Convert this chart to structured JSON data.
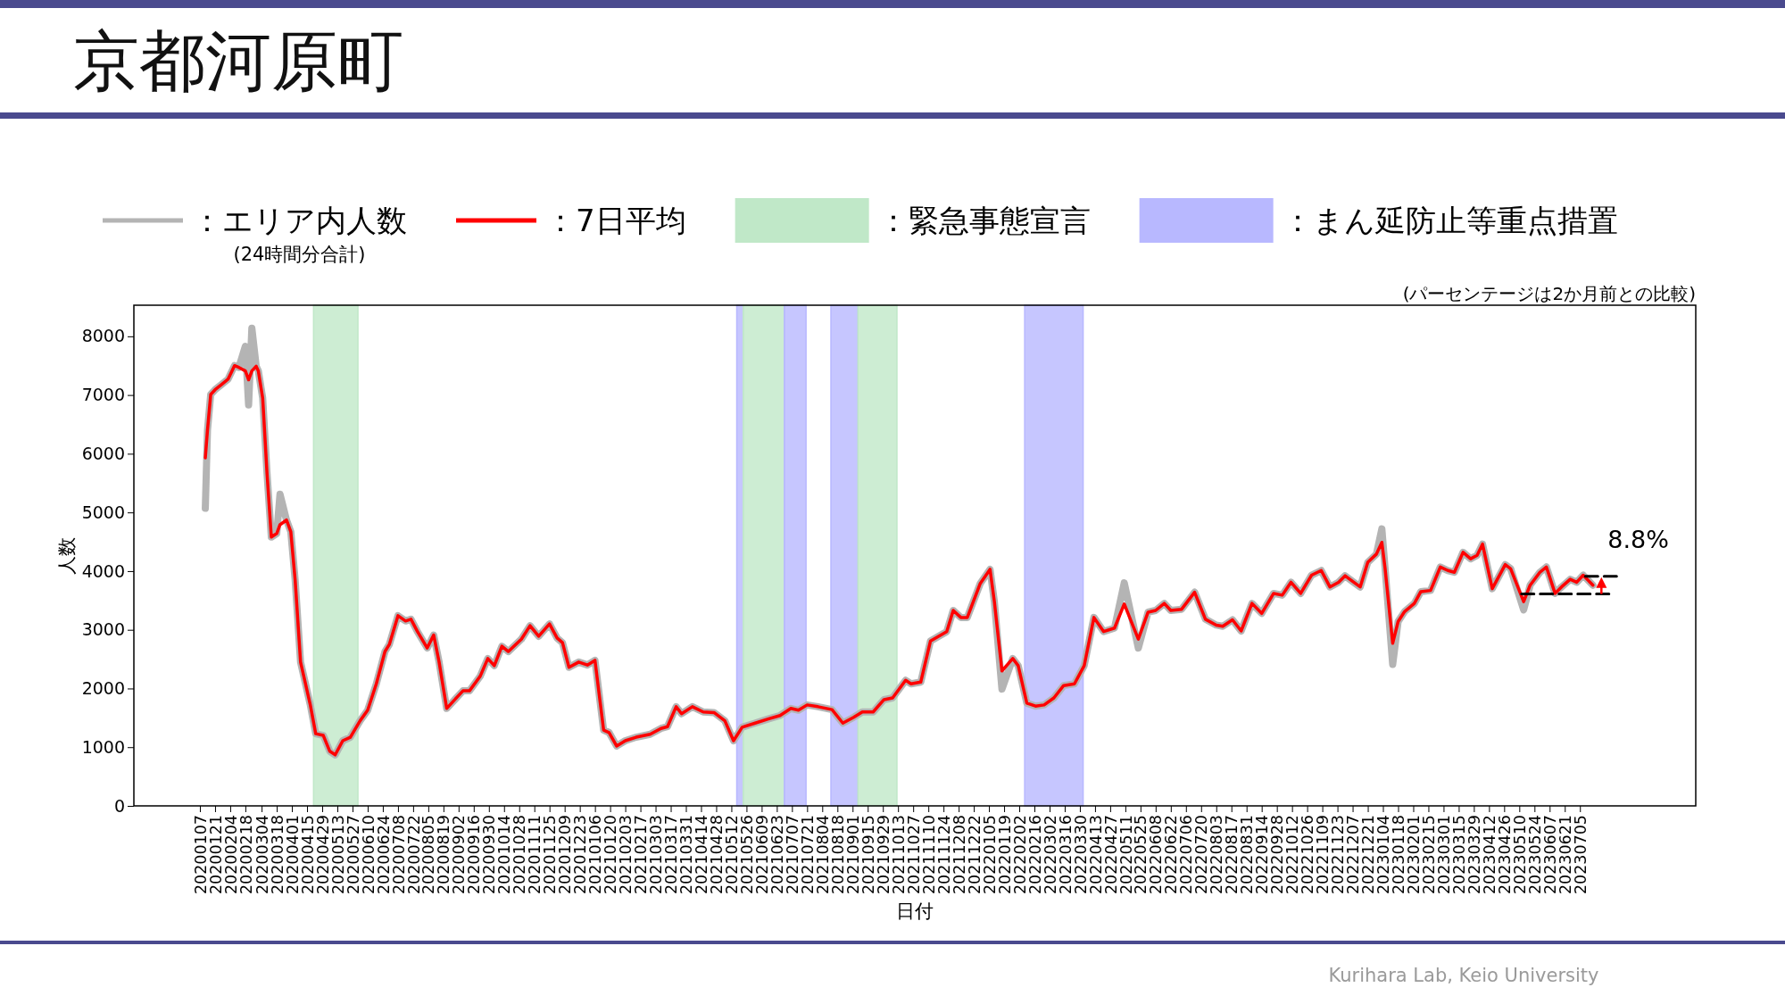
{
  "chart_data": {
    "type": "line",
    "title": "京都河原町",
    "xlabel": "日付",
    "ylabel": "人数",
    "x": [
      "2020-01-12",
      "2020-01-14",
      "2020-01-17",
      "2020-01-21",
      "2020-01-27",
      "2020-02-02",
      "2020-02-08",
      "2020-02-12",
      "2020-02-18",
      "2020-02-21",
      "2020-02-24",
      "2020-02-28",
      "2020-03-01",
      "2020-03-05",
      "2020-03-09",
      "2020-03-13",
      "2020-03-18",
      "2020-03-21",
      "2020-03-27",
      "2020-03-31",
      "2020-04-04",
      "2020-04-09",
      "2020-04-18",
      "2020-04-23",
      "2020-04-30",
      "2020-05-06",
      "2020-05-11",
      "2020-05-18",
      "2020-05-25",
      "2020-06-03",
      "2020-06-10",
      "2020-06-18",
      "2020-06-26",
      "2020-06-30",
      "2020-07-08",
      "2020-07-15",
      "2020-07-20",
      "2020-07-26",
      "2020-08-04",
      "2020-08-10",
      "2020-08-15",
      "2020-08-22",
      "2020-08-28",
      "2020-09-06",
      "2020-09-12",
      "2020-09-22",
      "2020-09-29",
      "2020-10-05",
      "2020-10-12",
      "2020-10-18",
      "2020-10-30",
      "2020-11-07",
      "2020-11-15",
      "2020-11-25",
      "2020-12-02",
      "2020-12-07",
      "2020-12-13",
      "2020-12-22",
      "2020-12-30",
      "2021-01-06",
      "2021-01-14",
      "2021-01-19",
      "2021-01-26",
      "2021-02-03",
      "2021-02-13",
      "2021-02-26",
      "2021-03-08",
      "2021-03-14",
      "2021-03-22",
      "2021-03-27",
      "2021-04-06",
      "2021-04-16",
      "2021-04-26",
      "2021-05-06",
      "2021-05-14",
      "2021-05-22",
      "2021-06-03",
      "2021-06-15",
      "2021-06-26",
      "2021-07-06",
      "2021-07-13",
      "2021-07-21",
      "2021-07-31",
      "2021-08-13",
      "2021-08-23",
      "2021-09-02",
      "2021-09-10",
      "2021-09-20",
      "2021-09-30",
      "2021-10-08",
      "2021-10-20",
      "2021-10-25",
      "2021-11-03",
      "2021-11-12",
      "2021-11-27",
      "2021-12-03",
      "2021-12-10",
      "2021-12-16",
      "2021-12-28",
      "2022-01-06",
      "2022-01-10",
      "2022-01-17",
      "2022-01-27",
      "2022-02-01",
      "2022-02-09",
      "2022-02-17",
      "2022-02-25",
      "2022-03-06",
      "2022-03-15",
      "2022-03-25",
      "2022-04-03",
      "2022-04-12",
      "2022-04-21",
      "2022-05-01",
      "2022-05-10",
      "2022-05-23",
      "2022-06-01",
      "2022-06-08",
      "2022-06-16",
      "2022-06-22",
      "2022-07-02",
      "2022-07-14",
      "2022-07-24",
      "2022-08-03",
      "2022-08-09",
      "2022-08-18",
      "2022-08-26",
      "2022-09-05",
      "2022-09-14",
      "2022-09-25",
      "2022-10-03",
      "2022-10-11",
      "2022-10-20",
      "2022-10-30",
      "2022-11-08",
      "2022-11-16",
      "2022-11-24",
      "2022-11-30",
      "2022-12-08",
      "2022-12-14",
      "2022-12-21",
      "2022-12-29",
      "2023-01-03",
      "2023-01-06",
      "2023-01-13",
      "2023-01-18",
      "2023-01-24",
      "2023-02-02",
      "2023-02-08",
      "2023-02-17",
      "2023-02-26",
      "2023-03-05",
      "2023-03-11",
      "2023-03-19",
      "2023-03-26",
      "2023-04-01",
      "2023-04-06",
      "2023-04-15",
      "2023-04-27",
      "2023-05-02",
      "2023-05-14",
      "2023-05-20",
      "2023-05-29",
      "2023-06-04",
      "2023-06-12",
      "2023-06-18",
      "2023-06-26",
      "2023-07-02",
      "2023-07-08",
      "2023-07-17"
    ],
    "series": [
      {
        "name": "：エリア内人数",
        "color": "#b4b4b4",
        "values": [
          5070,
          6400,
          7010,
          7090,
          7180,
          7270,
          7500,
          7470,
          7830,
          6830,
          8140,
          7490,
          7410,
          6950,
          5670,
          4580,
          4640,
          5310,
          4870,
          4670,
          3850,
          2450,
          1720,
          1230,
          1200,
          930,
          870,
          1110,
          1170,
          1450,
          1630,
          2080,
          2630,
          2750,
          3240,
          3150,
          3180,
          2970,
          2690,
          2910,
          2450,
          1660,
          1780,
          1960,
          1960,
          2210,
          2510,
          2390,
          2720,
          2630,
          2840,
          3070,
          2890,
          3100,
          2860,
          2780,
          2360,
          2450,
          2400,
          2480,
          1290,
          1250,
          1020,
          1110,
          1170,
          1220,
          1320,
          1350,
          1690,
          1570,
          1690,
          1600,
          1590,
          1450,
          1110,
          1340,
          1410,
          1480,
          1540,
          1660,
          1630,
          1720,
          1690,
          1640,
          1410,
          1510,
          1600,
          1600,
          1810,
          1840,
          2140,
          2080,
          2110,
          2810,
          2970,
          3330,
          3210,
          3210,
          3790,
          4030,
          3480,
          1990,
          2510,
          2390,
          1750,
          1700,
          1720,
          1840,
          2050,
          2080,
          2390,
          3210,
          2970,
          3030,
          3800,
          2690,
          3300,
          3330,
          3450,
          3330,
          3350,
          3640,
          3180,
          3080,
          3060,
          3170,
          2980,
          3450,
          3280,
          3620,
          3590,
          3810,
          3620,
          3930,
          4010,
          3730,
          3810,
          3920,
          3810,
          3730,
          4150,
          4290,
          4720,
          4040,
          2410,
          3140,
          3310,
          3450,
          3650,
          3670,
          4070,
          4010,
          3980,
          4320,
          4210,
          4270,
          4460,
          3700,
          4110,
          4040,
          3340,
          3760,
          3980,
          4070,
          3620,
          3730,
          3860,
          3810,
          3930,
          3760
        ]
      },
      {
        "name": "：7日平均",
        "color": "#ff0000",
        "values": [
          5930,
          6400,
          7010,
          7090,
          7180,
          7270,
          7500,
          7470,
          7410,
          7260,
          7410,
          7490,
          7410,
          6950,
          5670,
          4580,
          4640,
          4790,
          4870,
          4670,
          3850,
          2450,
          1720,
          1230,
          1200,
          930,
          870,
          1110,
          1170,
          1450,
          1630,
          2080,
          2630,
          2750,
          3240,
          3150,
          3180,
          2970,
          2690,
          2910,
          2450,
          1660,
          1780,
          1960,
          1960,
          2210,
          2510,
          2390,
          2720,
          2630,
          2840,
          3070,
          2890,
          3100,
          2860,
          2780,
          2360,
          2450,
          2400,
          2480,
          1290,
          1250,
          1020,
          1110,
          1170,
          1220,
          1320,
          1350,
          1690,
          1570,
          1690,
          1600,
          1590,
          1450,
          1110,
          1340,
          1410,
          1480,
          1540,
          1660,
          1630,
          1720,
          1690,
          1640,
          1410,
          1510,
          1600,
          1600,
          1810,
          1840,
          2140,
          2080,
          2110,
          2810,
          2970,
          3330,
          3210,
          3210,
          3790,
          4030,
          3480,
          2300,
          2510,
          2390,
          1750,
          1700,
          1720,
          1840,
          2050,
          2080,
          2390,
          3210,
          2970,
          3030,
          3440,
          2840,
          3300,
          3330,
          3450,
          3330,
          3350,
          3640,
          3180,
          3080,
          3060,
          3170,
          2980,
          3450,
          3280,
          3620,
          3590,
          3810,
          3620,
          3930,
          4010,
          3730,
          3810,
          3920,
          3810,
          3730,
          4150,
          4290,
          4490,
          4040,
          2770,
          3140,
          3310,
          3450,
          3650,
          3670,
          4070,
          4010,
          3980,
          4320,
          4210,
          4270,
          4460,
          3700,
          4110,
          4040,
          3480,
          3760,
          3980,
          4070,
          3620,
          3730,
          3860,
          3810,
          3930,
          3760
        ]
      },
      {
        "type": "line",
        "color": "#000000",
        "line_style": "dashed",
        "x": [
          "2023-05-12",
          "2023-08-05"
        ],
        "values": [
          3610,
          3610
        ]
      },
      {
        "type": "line",
        "color": "#000000",
        "line_style": "dashed",
        "x": [
          "2023-07-10",
          "2023-08-08"
        ],
        "values": [
          3910,
          3910
        ]
      }
    ],
    "bands": [
      {
        "axis": "x",
        "from": "2020-04-21",
        "to": "2020-06-01",
        "label": "：緊急事態宣言",
        "color": "#c0e8c8"
      },
      {
        "axis": "x",
        "from": "2021-05-17",
        "to": "2021-05-23",
        "label": "：まん延防止等重点措置",
        "color": "#b8b8ff"
      },
      {
        "axis": "x",
        "from": "2021-05-23",
        "to": "2021-06-30",
        "color": "#c0e8c8"
      },
      {
        "axis": "x",
        "from": "2021-06-30",
        "to": "2021-07-20",
        "color": "#b8b8ff"
      },
      {
        "axis": "x",
        "from": "2021-08-12",
        "to": "2021-09-06",
        "color": "#b8b8ff"
      },
      {
        "axis": "x",
        "from": "2021-09-06",
        "to": "2021-10-12",
        "color": "#c0e8c8"
      },
      {
        "axis": "x",
        "from": "2022-02-07",
        "to": "2022-04-02",
        "color": "#b8b8ff"
      }
    ],
    "annotations": [
      "(24時間分合計)",
      "(パーセンテージは2か月前との比較)",
      "Kurihara Lab, Keio University",
      "8.8%"
    ],
    "xlim": [
      "2019-11-07",
      "2023-10-20"
    ],
    "ylim": [
      0,
      8530
    ],
    "yticks": [
      0,
      1000,
      2000,
      3000,
      4000,
      5000,
      6000,
      7000,
      8000
    ],
    "xticks": [
      {
        "value": "2020-01-07",
        "label": "20200107"
      },
      {
        "value": "2020-01-21",
        "label": "20200121"
      },
      {
        "value": "2020-02-04",
        "label": "20200204"
      },
      {
        "value": "2020-02-18",
        "label": "20200218"
      },
      {
        "value": "2020-03-04",
        "label": "20200304"
      },
      {
        "value": "2020-03-18",
        "label": "20200318"
      },
      {
        "value": "2020-04-01",
        "label": "20200401"
      },
      {
        "value": "2020-04-15",
        "label": "20200415"
      },
      {
        "value": "2020-04-29",
        "label": "20200429"
      },
      {
        "value": "2020-05-13",
        "label": "20200513"
      },
      {
        "value": "2020-05-27",
        "label": "20200527"
      },
      {
        "value": "2020-06-10",
        "label": "20200610"
      },
      {
        "value": "2020-06-24",
        "label": "20200624"
      },
      {
        "value": "2020-07-08",
        "label": "20200708"
      },
      {
        "value": "2020-07-22",
        "label": "20200722"
      },
      {
        "value": "2020-08-05",
        "label": "20200805"
      },
      {
        "value": "2020-08-19",
        "label": "20200819"
      },
      {
        "value": "2020-09-02",
        "label": "20200902"
      },
      {
        "value": "2020-09-16",
        "label": "20200916"
      },
      {
        "value": "2020-09-30",
        "label": "20200930"
      },
      {
        "value": "2020-10-14",
        "label": "20201014"
      },
      {
        "value": "2020-10-28",
        "label": "20201028"
      },
      {
        "value": "2020-11-11",
        "label": "20201111"
      },
      {
        "value": "2020-11-25",
        "label": "20201125"
      },
      {
        "value": "2020-12-09",
        "label": "20201209"
      },
      {
        "value": "2020-12-23",
        "label": "20201223"
      },
      {
        "value": "2021-01-06",
        "label": "20210106"
      },
      {
        "value": "2021-01-20",
        "label": "20210120"
      },
      {
        "value": "2021-02-03",
        "label": "20210203"
      },
      {
        "value": "2021-02-17",
        "label": "20210217"
      },
      {
        "value": "2021-03-03",
        "label": "20210303"
      },
      {
        "value": "2021-03-17",
        "label": "20210317"
      },
      {
        "value": "2021-03-31",
        "label": "20210331"
      },
      {
        "value": "2021-04-14",
        "label": "20210414"
      },
      {
        "value": "2021-04-28",
        "label": "20210428"
      },
      {
        "value": "2021-05-12",
        "label": "20210512"
      },
      {
        "value": "2021-05-26",
        "label": "20210526"
      },
      {
        "value": "2021-06-09",
        "label": "20210609"
      },
      {
        "value": "2021-06-23",
        "label": "20210623"
      },
      {
        "value": "2021-07-07",
        "label": "20210707"
      },
      {
        "value": "2021-07-21",
        "label": "20210721"
      },
      {
        "value": "2021-08-04",
        "label": "20210804"
      },
      {
        "value": "2021-08-18",
        "label": "20210818"
      },
      {
        "value": "2021-09-01",
        "label": "20210901"
      },
      {
        "value": "2021-09-15",
        "label": "20210915"
      },
      {
        "value": "2021-09-29",
        "label": "20210929"
      },
      {
        "value": "2021-10-13",
        "label": "20211013"
      },
      {
        "value": "2021-10-27",
        "label": "20211027"
      },
      {
        "value": "2021-11-10",
        "label": "20211110"
      },
      {
        "value": "2021-11-24",
        "label": "20211124"
      },
      {
        "value": "2021-12-08",
        "label": "20211208"
      },
      {
        "value": "2021-12-22",
        "label": "20211222"
      },
      {
        "value": "2022-01-05",
        "label": "20220105"
      },
      {
        "value": "2022-01-19",
        "label": "20220119"
      },
      {
        "value": "2022-02-02",
        "label": "20220202"
      },
      {
        "value": "2022-02-16",
        "label": "20220216"
      },
      {
        "value": "2022-03-02",
        "label": "20220302"
      },
      {
        "value": "2022-03-16",
        "label": "20220316"
      },
      {
        "value": "2022-03-30",
        "label": "20220330"
      },
      {
        "value": "2022-04-13",
        "label": "20220413"
      },
      {
        "value": "2022-04-27",
        "label": "20220427"
      },
      {
        "value": "2022-05-11",
        "label": "20220511"
      },
      {
        "value": "2022-05-25",
        "label": "20220525"
      },
      {
        "value": "2022-06-08",
        "label": "20220608"
      },
      {
        "value": "2022-06-22",
        "label": "20220622"
      },
      {
        "value": "2022-07-06",
        "label": "20220706"
      },
      {
        "value": "2022-07-20",
        "label": "20220720"
      },
      {
        "value": "2022-08-03",
        "label": "20220803"
      },
      {
        "value": "2022-08-17",
        "label": "20220817"
      },
      {
        "value": "2022-08-31",
        "label": "20220831"
      },
      {
        "value": "2022-09-14",
        "label": "20220914"
      },
      {
        "value": "2022-09-28",
        "label": "20220928"
      },
      {
        "value": "2022-10-12",
        "label": "20221012"
      },
      {
        "value": "2022-10-26",
        "label": "20221026"
      },
      {
        "value": "2022-11-09",
        "label": "20221109"
      },
      {
        "value": "2022-11-23",
        "label": "20221123"
      },
      {
        "value": "2022-12-07",
        "label": "20221207"
      },
      {
        "value": "2022-12-21",
        "label": "20221221"
      },
      {
        "value": "2023-01-04",
        "label": "20230104"
      },
      {
        "value": "2023-01-18",
        "label": "20230118"
      },
      {
        "value": "2023-02-01",
        "label": "20230201"
      },
      {
        "value": "2023-02-15",
        "label": "20230215"
      },
      {
        "value": "2023-03-01",
        "label": "20230301"
      },
      {
        "value": "2023-03-15",
        "label": "20230315"
      },
      {
        "value": "2023-03-29",
        "label": "20230329"
      },
      {
        "value": "2023-04-12",
        "label": "20230412"
      },
      {
        "value": "2023-04-26",
        "label": "20230426"
      },
      {
        "value": "2023-05-10",
        "label": "20230510"
      },
      {
        "value": "2023-05-24",
        "label": "20230524"
      },
      {
        "value": "2023-06-07",
        "label": "20230607"
      },
      {
        "value": "2023-06-21",
        "label": "20230621"
      },
      {
        "value": "2023-07-05",
        "label": "20230705"
      }
    ],
    "legend": "top"
  }
}
